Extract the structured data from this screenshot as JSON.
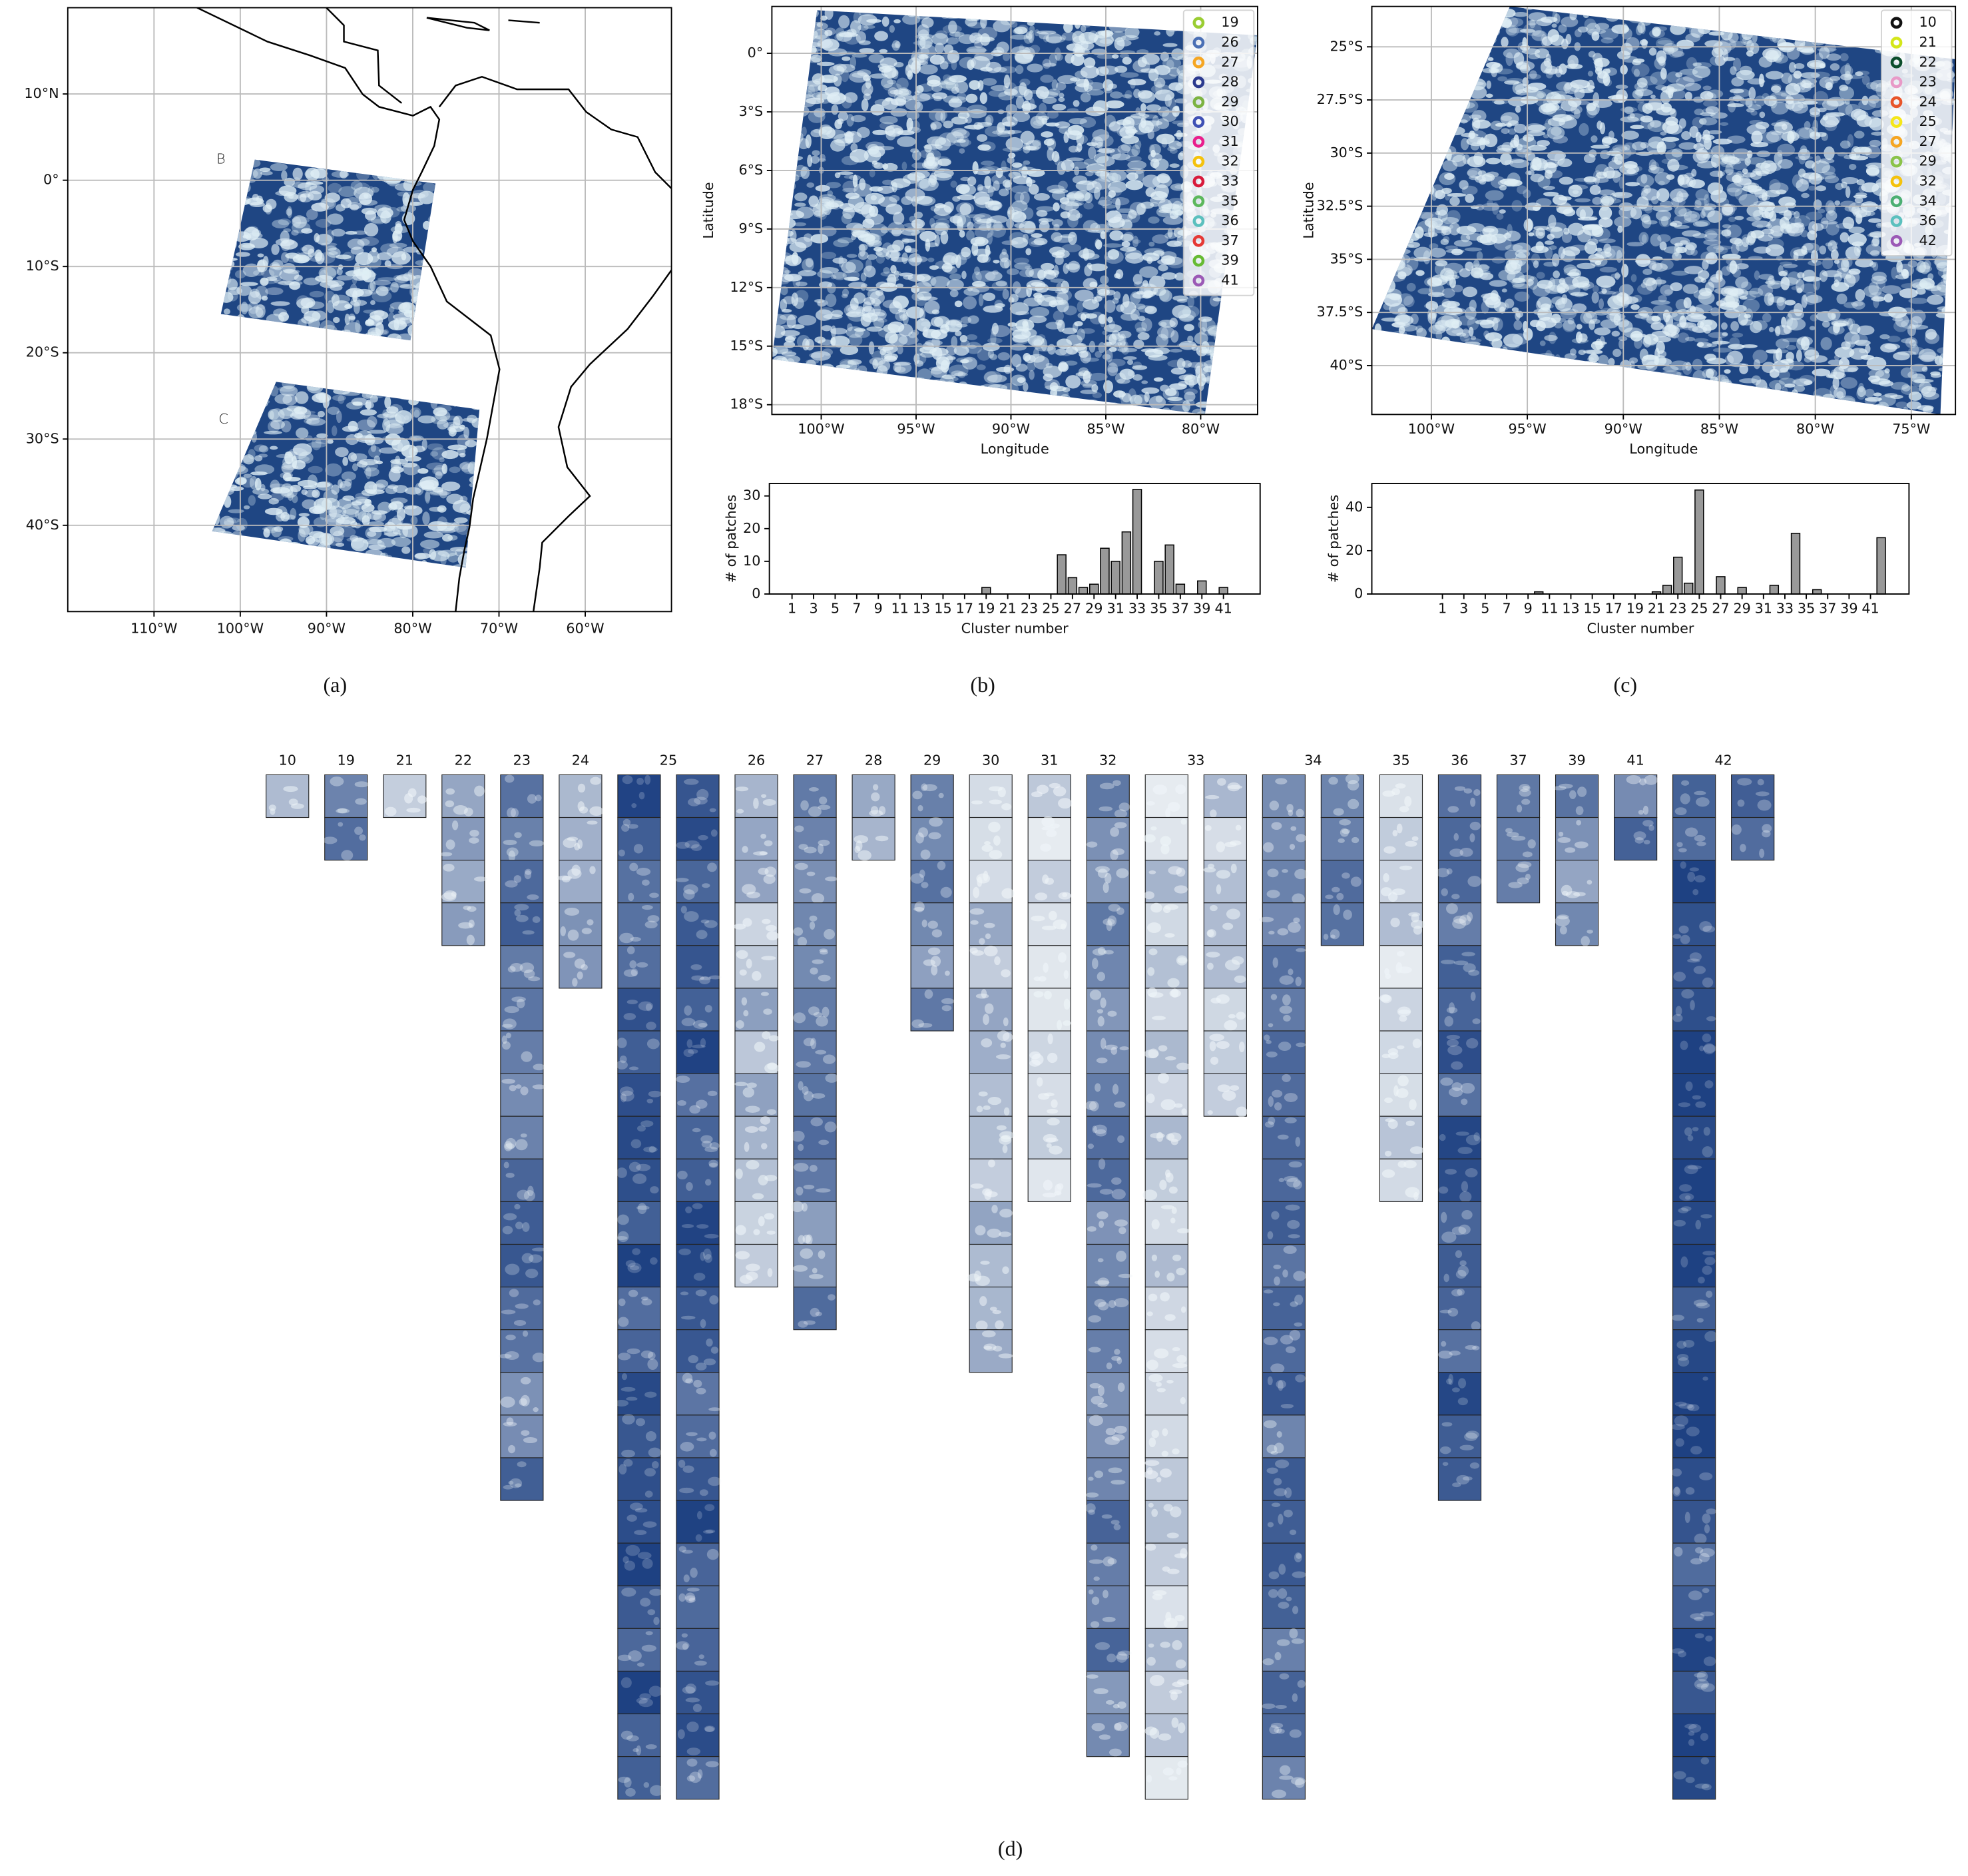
{
  "chart_data": [
    {
      "type": "map",
      "caption": "(a)",
      "xlim": [
        -120,
        -50
      ],
      "ylim": [
        -50,
        20
      ],
      "grid": true,
      "xticks": [
        {
          "value": -110,
          "label": "110°W"
        },
        {
          "value": -100,
          "label": "100°W"
        },
        {
          "value": -90,
          "label": "90°W"
        },
        {
          "value": -80,
          "label": "80°W"
        },
        {
          "value": -70,
          "label": "70°W"
        },
        {
          "value": -60,
          "label": "60°W"
        }
      ],
      "yticks": [
        {
          "value": 10,
          "label": "10°N"
        },
        {
          "value": 0,
          "label": "0°"
        },
        {
          "value": -10,
          "label": "10°S"
        },
        {
          "value": -20,
          "label": "20°S"
        },
        {
          "value": -30,
          "label": "30°S"
        },
        {
          "value": -40,
          "label": "40°S"
        }
      ],
      "annotations": [
        "B",
        "C"
      ]
    },
    {
      "type": "map",
      "caption": "(b)",
      "xlabel": "Longitude",
      "ylabel": "Latitude",
      "xlim": [
        -102.6,
        -77
      ],
      "ylim": [
        -18.5,
        2.4
      ],
      "grid": true,
      "xticks": [
        {
          "value": -100,
          "label": "100°W"
        },
        {
          "value": -95,
          "label": "95°W"
        },
        {
          "value": -90,
          "label": "90°W"
        },
        {
          "value": -85,
          "label": "85°W"
        },
        {
          "value": -80,
          "label": "80°W"
        }
      ],
      "yticks": [
        {
          "value": 0,
          "label": "0°"
        },
        {
          "value": -3,
          "label": "3°S"
        },
        {
          "value": -6,
          "label": "6°S"
        },
        {
          "value": -9,
          "label": "9°S"
        },
        {
          "value": -12,
          "label": "12°S"
        },
        {
          "value": -15,
          "label": "15°S"
        },
        {
          "value": -18,
          "label": "18°S"
        }
      ],
      "legend": [
        {
          "name": "19",
          "color": "#9acd32"
        },
        {
          "name": "26",
          "color": "#4a6fb5"
        },
        {
          "name": "27",
          "color": "#f5a623"
        },
        {
          "name": "28",
          "color": "#2b3a8f"
        },
        {
          "name": "29",
          "color": "#7cb342"
        },
        {
          "name": "30",
          "color": "#3f51b5"
        },
        {
          "name": "31",
          "color": "#e91e8c"
        },
        {
          "name": "32",
          "color": "#f4c20d"
        },
        {
          "name": "33",
          "color": "#d81b3c"
        },
        {
          "name": "35",
          "color": "#5cb85c"
        },
        {
          "name": "36",
          "color": "#5bc0be"
        },
        {
          "name": "37",
          "color": "#e53935"
        },
        {
          "name": "39",
          "color": "#66bb33"
        },
        {
          "name": "41",
          "color": "#9b59b6"
        }
      ]
    },
    {
      "type": "bar",
      "xlabel": "Cluster number",
      "ylabel": "# of patches",
      "xlim": [
        -1.1,
        44.4
      ],
      "ylim": [
        0,
        33.8
      ],
      "color": "#999999",
      "xticks": [
        1,
        3,
        5,
        7,
        9,
        11,
        13,
        15,
        17,
        19,
        21,
        23,
        25,
        27,
        29,
        31,
        33,
        35,
        37,
        39,
        41
      ],
      "yticks": [
        0,
        10,
        20,
        30
      ],
      "x": [
        19,
        26,
        27,
        28,
        29,
        30,
        31,
        32,
        33,
        35,
        36,
        37,
        39,
        41
      ],
      "values": [
        2,
        12,
        5,
        2,
        3,
        14,
        10,
        19,
        32,
        10,
        15,
        3,
        4,
        2
      ]
    },
    {
      "type": "map",
      "caption": "(c)",
      "xlabel": "Longitude",
      "ylabel": "Latitude",
      "xlim": [
        -103.1,
        -72.7
      ],
      "ylim": [
        -42.3,
        -23.1
      ],
      "grid": true,
      "xticks": [
        {
          "value": -100,
          "label": "100°W"
        },
        {
          "value": -95,
          "label": "95°W"
        },
        {
          "value": -90,
          "label": "90°W"
        },
        {
          "value": -85,
          "label": "85°W"
        },
        {
          "value": -80,
          "label": "80°W"
        },
        {
          "value": -75,
          "label": "75°W"
        }
      ],
      "yticks": [
        {
          "value": -25,
          "label": "25°S"
        },
        {
          "value": -27.5,
          "label": "27.5°S"
        },
        {
          "value": -30,
          "label": "30°S"
        },
        {
          "value": -32.5,
          "label": "32.5°S"
        },
        {
          "value": -35,
          "label": "35°S"
        },
        {
          "value": -37.5,
          "label": "37.5°S"
        },
        {
          "value": -40,
          "label": "40°S"
        }
      ],
      "legend": [
        {
          "name": "10",
          "color": "#111111"
        },
        {
          "name": "21",
          "color": "#d4e61a"
        },
        {
          "name": "22",
          "color": "#0b4d2c"
        },
        {
          "name": "23",
          "color": "#e89ac7"
        },
        {
          "name": "24",
          "color": "#e8552a"
        },
        {
          "name": "25",
          "color": "#f5e61a"
        },
        {
          "name": "27",
          "color": "#f5a623"
        },
        {
          "name": "29",
          "color": "#8bc34a"
        },
        {
          "name": "32",
          "color": "#f4c20d"
        },
        {
          "name": "34",
          "color": "#4caf73"
        },
        {
          "name": "36",
          "color": "#5bc0be"
        },
        {
          "name": "42",
          "color": "#9b59b6"
        }
      ]
    },
    {
      "type": "bar",
      "xlabel": "Cluster number",
      "ylabel": "# of patches",
      "xlim": [
        -5.6,
        44.6
      ],
      "ylim": [
        0,
        51
      ],
      "color": "#999999",
      "xticks": [
        1,
        3,
        5,
        7,
        9,
        11,
        13,
        15,
        17,
        19,
        21,
        23,
        25,
        27,
        29,
        31,
        33,
        35,
        37,
        39,
        41
      ],
      "yticks": [
        0,
        20,
        40
      ],
      "x": [
        10,
        21,
        22,
        23,
        24,
        25,
        27,
        29,
        32,
        34,
        36,
        42
      ],
      "values": [
        1,
        1,
        4,
        17,
        5,
        48,
        8,
        3,
        4,
        28,
        2,
        26
      ]
    },
    {
      "type": "patches",
      "caption": "(d)",
      "categories": [
        10,
        19,
        21,
        22,
        23,
        24,
        25,
        26,
        27,
        28,
        29,
        30,
        31,
        32,
        33,
        34,
        35,
        36,
        37,
        39,
        41,
        42
      ],
      "values": [
        1,
        2,
        1,
        4,
        17,
        5,
        48,
        12,
        13,
        2,
        6,
        14,
        10,
        23,
        32,
        28,
        10,
        17,
        3,
        4,
        2,
        26
      ]
    }
  ]
}
